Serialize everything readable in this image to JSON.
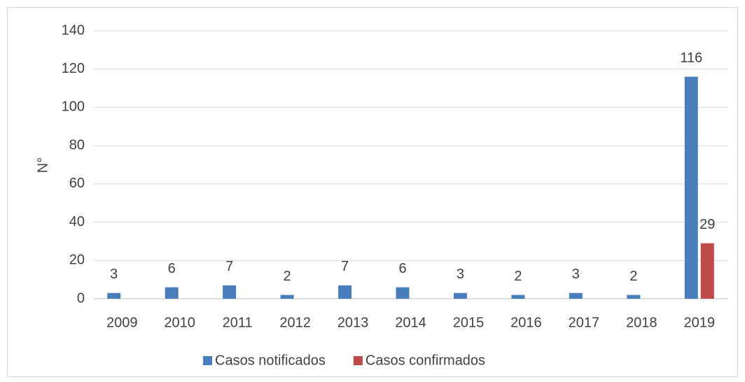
{
  "chart_data": {
    "type": "bar",
    "y_label": "N°",
    "categories": [
      "2009",
      "2010",
      "2011",
      "2012",
      "2013",
      "2014",
      "2015",
      "2016",
      "2017",
      "2018",
      "2019"
    ],
    "series": [
      {
        "name": "Casos notificados",
        "color": "#4a7ebb",
        "values": [
          3,
          6,
          7,
          2,
          7,
          6,
          3,
          2,
          3,
          2,
          116
        ]
      },
      {
        "name": "Casos confirmados",
        "color": "#be4b48",
        "values": [
          null,
          null,
          null,
          null,
          null,
          null,
          null,
          null,
          null,
          null,
          29
        ]
      }
    ],
    "ylim": [
      0,
      140
    ],
    "yticks": [
      0,
      20,
      40,
      60,
      80,
      100,
      120,
      140
    ],
    "grid": true,
    "legend": "bottom"
  }
}
